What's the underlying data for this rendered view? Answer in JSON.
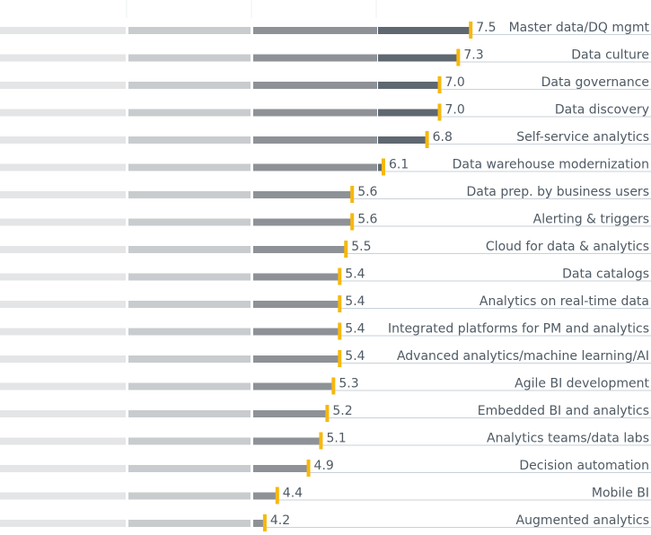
{
  "chart_data": {
    "type": "bar",
    "orientation": "horizontal",
    "categories": [
      "Master data/DQ mgmt",
      "Data culture",
      "Data governance",
      "Data discovery",
      "Self-service analytics",
      "Data warehouse modernization",
      "Data prep. by business users",
      "Alerting & triggers",
      "Cloud for data & analytics",
      "Data catalogs",
      "Analytics on real-time data",
      "Integrated platforms for PM and analytics",
      "Advanced analytics/machine learning/AI",
      "Agile BI development",
      "Embedded BI and analytics",
      "Analytics teams/data labs",
      "Decision automation",
      "Mobile BI",
      "Augmented analytics"
    ],
    "values": [
      7.5,
      7.3,
      7.0,
      7.0,
      6.8,
      6.1,
      5.6,
      5.6,
      5.5,
      5.4,
      5.4,
      5.4,
      5.4,
      5.3,
      5.2,
      5.1,
      4.9,
      4.4,
      4.2
    ],
    "value_labels": [
      "7.5",
      "7.3",
      "7.0",
      "7.0",
      "6.8",
      "6.1",
      "5.6",
      "5.6",
      "5.5",
      "5.4",
      "5.4",
      "5.4",
      "5.4",
      "5.3",
      "5.2",
      "5.1",
      "4.9",
      "4.4",
      "4.2"
    ],
    "xlim": [
      0,
      8
    ],
    "band_edges": [
      0,
      2,
      4,
      6,
      8
    ],
    "band_colors": [
      "#e3e5e6",
      "#c9ccce",
      "#8e9297",
      "#5f6870"
    ],
    "marker_color": "#f6b80e",
    "text_color": "#4f5a64",
    "grid": false
  }
}
